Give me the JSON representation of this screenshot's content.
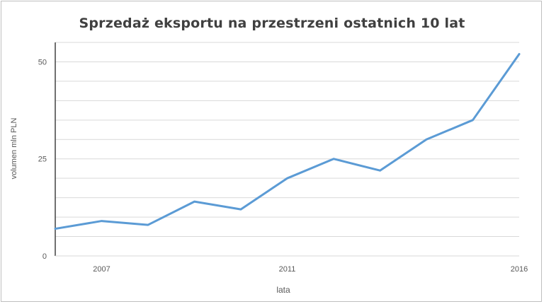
{
  "chart_data": {
    "type": "line",
    "title": "Sprzedaż eksportu na przestrzeni ostatnich 10 lat",
    "xlabel": "lata",
    "ylabel": "volumen mln PLN",
    "x": [
      2006,
      2007,
      2008,
      2009,
      2010,
      2011,
      2012,
      2013,
      2014,
      2015,
      2016
    ],
    "x_tick_labels": [
      "2007",
      "2011",
      "2016"
    ],
    "x_tick_values": [
      2007,
      2011,
      2016
    ],
    "y_tick_labels": [
      "0",
      "25",
      "50"
    ],
    "y_tick_values": [
      0,
      25,
      50
    ],
    "ylim": [
      0,
      55
    ],
    "xlim": [
      2006,
      2016
    ],
    "grid": "horizontal",
    "series": [
      {
        "values": [
          7,
          9,
          8,
          14,
          12,
          20,
          25,
          22,
          30,
          35,
          52
        ],
        "color": "#5b9bd5"
      }
    ]
  },
  "colors": {
    "line": "#5b9bd5",
    "grid": "#d9d9d9",
    "axis": "#404040"
  }
}
